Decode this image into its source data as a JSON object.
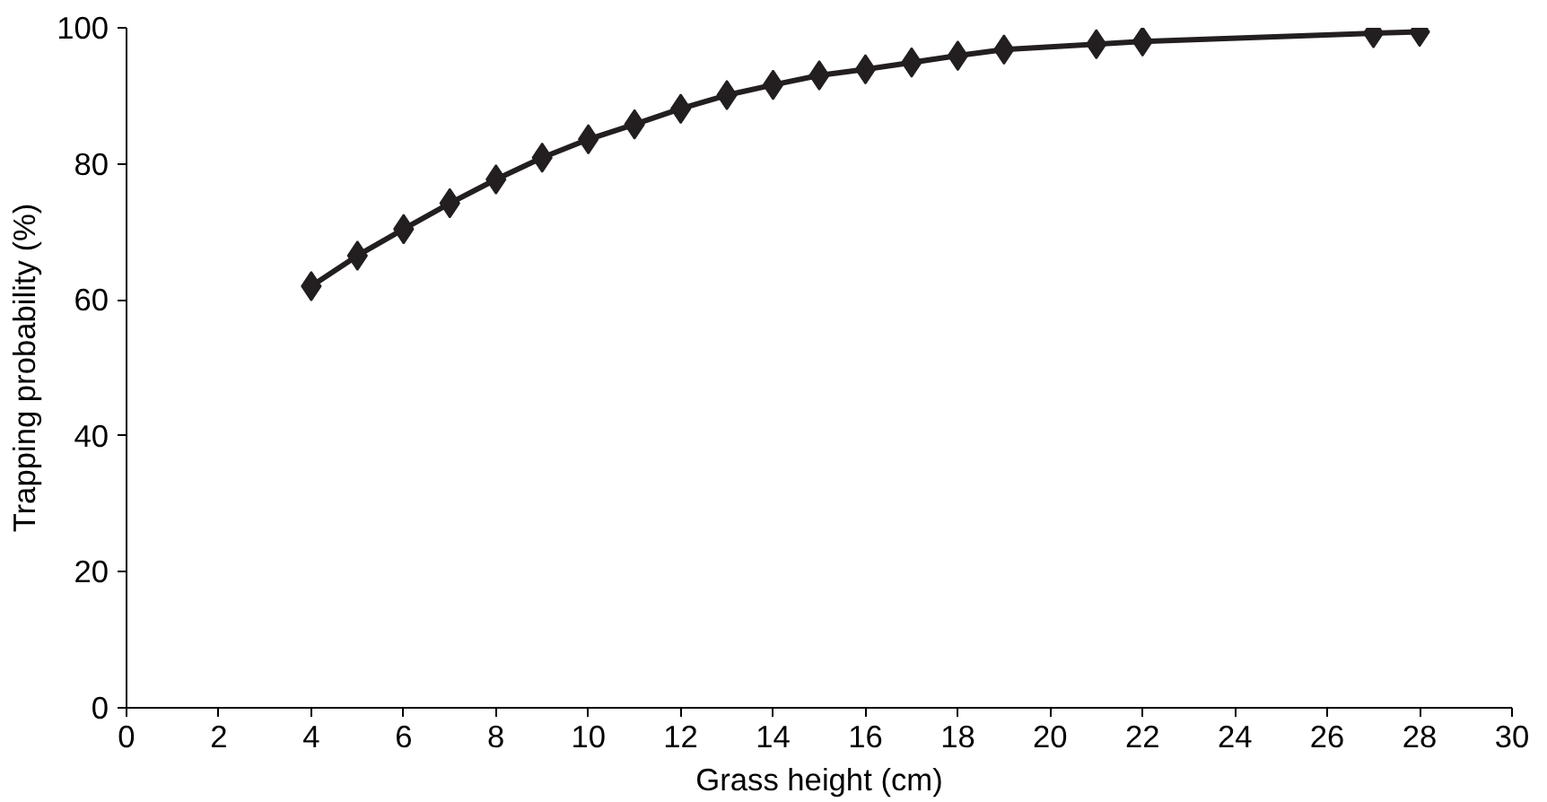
{
  "chart_data": {
    "type": "line",
    "xlabel": "Grass height (cm)",
    "ylabel": "Trapping probability (%)",
    "x": [
      4,
      5,
      6,
      7,
      8,
      9,
      10,
      11,
      12,
      13,
      14,
      15,
      16,
      17,
      18,
      19,
      21,
      22,
      27,
      28
    ],
    "series": [
      {
        "color": "#231f20",
        "values": [
          62,
          66.5,
          70.4,
          74.2,
          77.7,
          80.9,
          83.6,
          85.8,
          88.1,
          90.1,
          91.6,
          93,
          93.9,
          94.9,
          95.9,
          96.8,
          97.6,
          98,
          99.2,
          99.4
        ]
      }
    ],
    "xlim": [
      0,
      30
    ],
    "xticks": [
      0,
      2,
      4,
      6,
      8,
      10,
      12,
      14,
      16,
      18,
      20,
      22,
      24,
      26,
      28,
      30
    ],
    "ylim": [
      0,
      100
    ],
    "yticks": [
      0,
      20,
      40,
      60,
      80,
      100
    ],
    "grid": false,
    "marker": "diamond",
    "line_style": "solid"
  }
}
